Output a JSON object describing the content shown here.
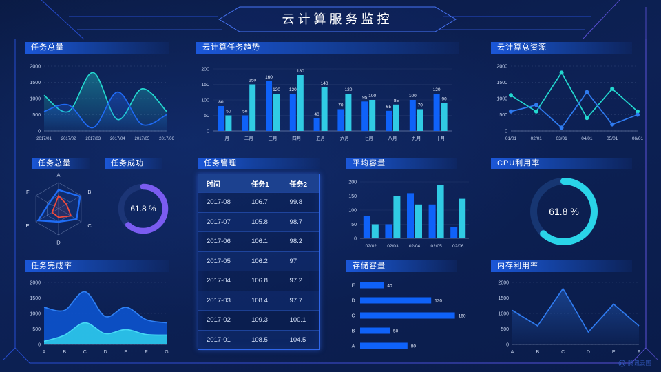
{
  "header": {
    "title": "云计算服务监控"
  },
  "watermark": {
    "label": "腾讯云图"
  },
  "colors": {
    "accent_blue": "#0f62f9",
    "accent_cyan": "#30cbe4",
    "accent_teal": "#23d8cf",
    "accent_purple": "#7a5cf0",
    "accent_red": "#f04a3c",
    "frame_blue": "#2a55e8",
    "frame_purple": "#6a5af0"
  },
  "panels": {
    "task_total": {
      "title": "任务总量"
    },
    "task_trend": {
      "title": "云计算任务趋势"
    },
    "total_resources": {
      "title": "云计算总资源"
    },
    "task_radar": {
      "title": "任务总量"
    },
    "task_success": {
      "title": "任务成功"
    },
    "task_table": {
      "title": "任务管理",
      "columns": [
        "时间",
        "任务1",
        "任务2"
      ],
      "rows": [
        [
          "2017-08",
          "106.7",
          "99.8"
        ],
        [
          "2017-07",
          "105.8",
          "98.7"
        ],
        [
          "2017-06",
          "106.1",
          "98.2"
        ],
        [
          "2017-05",
          "106.2",
          "97"
        ],
        [
          "2017-04",
          "106.8",
          "97.2"
        ],
        [
          "2017-03",
          "108.4",
          "97.7"
        ],
        [
          "2017-02",
          "109.3",
          "100.1"
        ],
        [
          "2017-01",
          "108.5",
          "104.5"
        ]
      ]
    },
    "avg_capacity": {
      "title": "平均容量"
    },
    "cpu_usage": {
      "title": "CPU利用率"
    },
    "completion": {
      "title": "任务完成率"
    },
    "storage": {
      "title": "存储容量"
    },
    "memory": {
      "title": "内存利用率"
    }
  },
  "chart_data": [
    {
      "id": "task_total_line",
      "type": "line",
      "smooth": true,
      "area": true,
      "title": "任务总量",
      "x": [
        "2017/01",
        "2017/02",
        "2017/03",
        "2017/04",
        "2017/05",
        "2017/06"
      ],
      "ylim": [
        0,
        2000
      ],
      "yticks": [
        0,
        500,
        1000,
        1500,
        2000
      ],
      "series": [
        {
          "name": "teal",
          "color": "#23d8cf",
          "values": [
            1100,
            600,
            1800,
            350,
            1300,
            600
          ]
        },
        {
          "name": "blue",
          "color": "#1f6af5",
          "values": [
            600,
            800,
            100,
            1200,
            200,
            500
          ]
        }
      ]
    },
    {
      "id": "task_trend",
      "type": "bar",
      "labels": true,
      "title": "云计算任务趋势",
      "categories": [
        "一月",
        "二月",
        "三月",
        "四月",
        "五月",
        "六月",
        "七月",
        "八月",
        "九月",
        "十月"
      ],
      "ylim": [
        0,
        200
      ],
      "yticks": [
        0,
        50,
        100,
        150,
        200
      ],
      "series": [
        {
          "name": "任务1",
          "color": "#0f62f9",
          "values": [
            80,
            50,
            160,
            120,
            40,
            70,
            95,
            65,
            100,
            120
          ]
        },
        {
          "name": "任务2",
          "color": "#30cbe4",
          "values": [
            50,
            150,
            120,
            180,
            140,
            120,
            100,
            85,
            70,
            90
          ]
        }
      ]
    },
    {
      "id": "total_resources",
      "type": "line",
      "smooth": false,
      "markers": true,
      "title": "云计算总资源",
      "x": [
        "01/01",
        "02/01",
        "03/01",
        "04/01",
        "05/01",
        "06/01"
      ],
      "ylim": [
        0,
        2000
      ],
      "yticks": [
        0,
        500,
        1000,
        1500,
        2000
      ],
      "series": [
        {
          "name": "teal",
          "color": "#23d8cf",
          "values": [
            1100,
            600,
            1800,
            400,
            1300,
            600
          ]
        },
        {
          "name": "blue",
          "color": "#2f7bf0",
          "values": [
            600,
            800,
            100,
            1200,
            200,
            500
          ]
        }
      ]
    },
    {
      "id": "task_radar",
      "type": "radar",
      "title": "任务总量",
      "axes": [
        "A",
        "B",
        "C",
        "D",
        "E",
        "F"
      ],
      "max": 100,
      "series": [
        {
          "name": "blue",
          "color": "#1f6cf5",
          "values": [
            72,
            95,
            80,
            50,
            90,
            42
          ]
        },
        {
          "name": "red",
          "color": "#f04a3c",
          "values": [
            50,
            35,
            55,
            33,
            28,
            18
          ]
        }
      ]
    },
    {
      "id": "task_success",
      "type": "donut",
      "title": "任务成功",
      "percent": 61.8,
      "label": "61.8 %",
      "color": "#7a5cf0",
      "track": "#1c3576"
    },
    {
      "id": "avg_capacity",
      "type": "bar",
      "labels": false,
      "title": "平均容量",
      "categories": [
        "02/02",
        "02/03",
        "02/04",
        "02/05",
        "02/06"
      ],
      "ylim": [
        0,
        200
      ],
      "yticks": [
        0,
        50,
        100,
        150,
        200
      ],
      "series": [
        {
          "name": "s1",
          "color": "#0f62f9",
          "values": [
            80,
            50,
            160,
            120,
            40
          ]
        },
        {
          "name": "s2",
          "color": "#30cbe4",
          "values": [
            50,
            150,
            120,
            190,
            140
          ]
        }
      ]
    },
    {
      "id": "cpu_usage",
      "type": "donut",
      "title": "CPU利用率",
      "percent": 61.8,
      "label": "61.8 %",
      "color": "#2ad4e8",
      "track": "#173672"
    },
    {
      "id": "completion",
      "type": "area",
      "smooth": true,
      "title": "任务完成率",
      "x": [
        "A",
        "B",
        "C",
        "D",
        "E",
        "F",
        "G"
      ],
      "ylim": [
        0,
        2000
      ],
      "yticks": [
        0,
        500,
        1000,
        1500,
        2000
      ],
      "series": [
        {
          "name": "blue",
          "color": "#0d52cc",
          "line": "#2f80f5",
          "values": [
            1200,
            1100,
            1700,
            900,
            1200,
            800,
            700
          ]
        },
        {
          "name": "cyan",
          "color": "#2cc5e8",
          "line": "#45d8f5",
          "values": [
            100,
            300,
            700,
            350,
            480,
            320,
            300
          ]
        }
      ]
    },
    {
      "id": "storage",
      "type": "hbar",
      "title": "存储容量",
      "categories": [
        "E",
        "D",
        "C",
        "B",
        "A"
      ],
      "values": [
        40,
        120,
        160,
        50,
        80
      ],
      "xmax": 160,
      "color": "#0f62f9"
    },
    {
      "id": "memory",
      "type": "line",
      "smooth": false,
      "area": true,
      "title": "内存利用率",
      "x": [
        "A",
        "B",
        "C",
        "D",
        "E",
        "F"
      ],
      "ylim": [
        0,
        2000
      ],
      "yticks": [
        0,
        500,
        1000,
        1500,
        2000
      ],
      "series": [
        {
          "name": "blue",
          "color": "#2f7bf0",
          "values": [
            1100,
            600,
            1800,
            400,
            1300,
            600
          ]
        }
      ]
    }
  ]
}
